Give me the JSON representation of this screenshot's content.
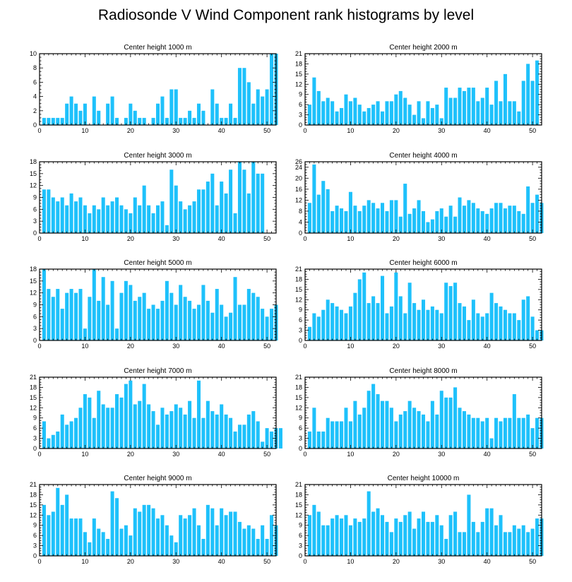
{
  "title": "Radiosonde V Wind Component rank histograms by level",
  "colors": {
    "bar": "#1ec1fb",
    "axis": "#000000"
  },
  "chart_data": [
    {
      "type": "bar",
      "title": "Center height 1000 m",
      "xlim": [
        0,
        52
      ],
      "xticks": [
        0,
        10,
        20,
        30,
        40,
        50
      ],
      "ylim": [
        0,
        10
      ],
      "yticks": [
        0,
        2,
        4,
        6,
        8,
        10
      ],
      "values": [
        1,
        1,
        1,
        1,
        1,
        3,
        4,
        3,
        2,
        3,
        0,
        4,
        2,
        0,
        3,
        4,
        1,
        0,
        1,
        3,
        2,
        1,
        1,
        0,
        1,
        3,
        4,
        1,
        5,
        5,
        1,
        1,
        2,
        1,
        3,
        2,
        0,
        5,
        3,
        1,
        1,
        3,
        1,
        8,
        8,
        6,
        3,
        5,
        4,
        5,
        10,
        10
      ]
    },
    {
      "type": "bar",
      "title": "Center height 2000 m",
      "xlim": [
        0,
        52
      ],
      "xticks": [
        0,
        10,
        20,
        30,
        40,
        50
      ],
      "ylim": [
        0,
        21
      ],
      "yticks": [
        0,
        3,
        6,
        9,
        12,
        15,
        18,
        21
      ],
      "values": [
        6,
        14,
        10,
        7,
        8,
        7,
        4,
        5,
        9,
        7,
        8,
        6,
        4,
        5,
        6,
        7,
        4,
        7,
        7,
        9,
        10,
        8,
        6,
        3,
        7,
        2,
        7,
        5,
        6,
        2,
        11,
        8,
        8,
        11,
        10,
        11,
        11,
        7,
        8,
        11,
        6,
        13,
        7,
        15,
        7,
        7,
        4,
        13,
        18,
        13,
        19
      ]
    },
    {
      "type": "bar",
      "title": "Center height 3000 m",
      "xlim": [
        0,
        52
      ],
      "xticks": [
        0,
        10,
        20,
        30,
        40,
        50
      ],
      "ylim": [
        0,
        18
      ],
      "yticks": [
        0,
        3,
        6,
        9,
        12,
        15,
        18
      ],
      "values": [
        11,
        11,
        9,
        8,
        9,
        7,
        10,
        8,
        9,
        7,
        5,
        7,
        6,
        9,
        7,
        8,
        9,
        7,
        6,
        5,
        9,
        7,
        12,
        7,
        5,
        7,
        8,
        2,
        16,
        12,
        8,
        6,
        7,
        8,
        11,
        11,
        13,
        15,
        7,
        13,
        10,
        16,
        5,
        18,
        16,
        10,
        18,
        15,
        15
      ]
    },
    {
      "type": "bar",
      "title": "Center height 4000 m",
      "xlim": [
        0,
        52
      ],
      "xticks": [
        0,
        10,
        20,
        30,
        40,
        50
      ],
      "ylim": [
        0,
        26
      ],
      "yticks": [
        0,
        4,
        8,
        12,
        16,
        20,
        24,
        26
      ],
      "values": [
        11,
        25,
        14,
        19,
        16,
        8,
        10,
        9,
        8,
        15,
        10,
        8,
        10,
        12,
        11,
        9,
        11,
        8,
        12,
        12,
        6,
        18,
        7,
        9,
        12,
        8,
        4,
        5,
        8,
        9,
        6,
        10,
        6,
        13,
        10,
        12,
        11,
        9,
        8,
        7,
        9,
        11,
        11,
        9,
        10,
        10,
        8,
        7,
        17,
        11,
        14,
        11
      ]
    },
    {
      "type": "bar",
      "title": "Center height 5000 m",
      "xlim": [
        0,
        52
      ],
      "xticks": [
        0,
        10,
        20,
        30,
        40,
        50
      ],
      "ylim": [
        0,
        18
      ],
      "yticks": [
        0,
        3,
        6,
        9,
        12,
        15,
        18
      ],
      "values": [
        18,
        13,
        11,
        13,
        8,
        12,
        13,
        12,
        13,
        3,
        11,
        18,
        10,
        16,
        9,
        15,
        3,
        12,
        15,
        14,
        10,
        11,
        12,
        8,
        9,
        8,
        10,
        15,
        12,
        9,
        14,
        11,
        10,
        8,
        9,
        14,
        10,
        7,
        13,
        9,
        6,
        7,
        16,
        9,
        9,
        13,
        12,
        11,
        8,
        6,
        8,
        9
      ]
    },
    {
      "type": "bar",
      "title": "Center height 6000 m",
      "xlim": [
        0,
        52
      ],
      "xticks": [
        0,
        10,
        20,
        30,
        40,
        50
      ],
      "ylim": [
        0,
        21
      ],
      "yticks": [
        0,
        3,
        6,
        9,
        12,
        15,
        18,
        21
      ],
      "values": [
        4,
        8,
        7,
        9,
        12,
        11,
        10,
        9,
        8,
        10,
        14,
        18,
        20,
        11,
        13,
        11,
        19,
        8,
        10,
        20,
        13,
        8,
        17,
        11,
        9,
        12,
        9,
        10,
        9,
        8,
        17,
        16,
        17,
        11,
        10,
        6,
        12,
        8,
        7,
        8,
        14,
        11,
        10,
        9,
        8,
        8,
        6,
        12,
        13,
        7,
        3,
        3
      ]
    },
    {
      "type": "bar",
      "title": "Center height 7000 m",
      "xlim": [
        0,
        52
      ],
      "xticks": [
        0,
        10,
        20,
        30,
        40,
        50
      ],
      "ylim": [
        0,
        21
      ],
      "yticks": [
        0,
        3,
        6,
        9,
        12,
        15,
        18,
        21
      ],
      "values": [
        8,
        3,
        4,
        5,
        10,
        7,
        8,
        9,
        12,
        16,
        15,
        9,
        17,
        13,
        12,
        12,
        16,
        15,
        19,
        20,
        13,
        14,
        19,
        13,
        11,
        7,
        12,
        10,
        11,
        13,
        12,
        10,
        14,
        9,
        20,
        9,
        14,
        11,
        10,
        13,
        10,
        9,
        5,
        7,
        7,
        10,
        11,
        8,
        2,
        6,
        5,
        6,
        6
      ]
    },
    {
      "type": "bar",
      "title": "Center height 8000 m",
      "xlim": [
        0,
        52
      ],
      "xticks": [
        0,
        10,
        20,
        30,
        40,
        50
      ],
      "ylim": [
        0,
        21
      ],
      "yticks": [
        0,
        3,
        6,
        9,
        12,
        15,
        18,
        21
      ],
      "values": [
        5,
        12,
        5,
        5,
        9,
        8,
        8,
        8,
        12,
        8,
        14,
        10,
        12,
        17,
        19,
        16,
        14,
        14,
        12,
        8,
        10,
        11,
        14,
        12,
        11,
        10,
        8,
        14,
        10,
        17,
        15,
        15,
        18,
        12,
        11,
        10,
        9,
        9,
        8,
        9,
        3,
        9,
        8,
        9,
        9,
        16,
        9,
        9,
        10,
        6,
        9,
        9
      ]
    },
    {
      "type": "bar",
      "title": "Center height 9000 m",
      "xlim": [
        0,
        52
      ],
      "xticks": [
        0,
        10,
        20,
        30,
        40,
        50
      ],
      "ylim": [
        0,
        21
      ],
      "yticks": [
        0,
        3,
        6,
        9,
        12,
        15,
        18,
        21
      ],
      "values": [
        15,
        12,
        13,
        20,
        15,
        18,
        11,
        11,
        11,
        7,
        4,
        11,
        8,
        7,
        5,
        19,
        17,
        8,
        9,
        6,
        14,
        13,
        15,
        15,
        14,
        11,
        12,
        9,
        6,
        4,
        12,
        11,
        12,
        14,
        9,
        5,
        15,
        14,
        9,
        14,
        12,
        13,
        13,
        10,
        8,
        9,
        8,
        5,
        9,
        5,
        12,
        9
      ]
    },
    {
      "type": "bar",
      "title": "Center height 10000 m",
      "xlim": [
        0,
        52
      ],
      "xticks": [
        0,
        10,
        20,
        30,
        40,
        50
      ],
      "ylim": [
        0,
        21
      ],
      "yticks": [
        0,
        3,
        6,
        9,
        12,
        15,
        18,
        21
      ],
      "values": [
        12,
        15,
        13,
        9,
        9,
        11,
        12,
        11,
        12,
        9,
        11,
        10,
        11,
        19,
        13,
        14,
        12,
        10,
        7,
        11,
        10,
        12,
        13,
        8,
        11,
        13,
        10,
        10,
        12,
        9,
        5,
        12,
        13,
        7,
        7,
        18,
        10,
        7,
        10,
        14,
        14,
        9,
        12,
        7,
        7,
        9,
        8,
        9,
        7,
        8,
        11,
        11
      ]
    }
  ]
}
